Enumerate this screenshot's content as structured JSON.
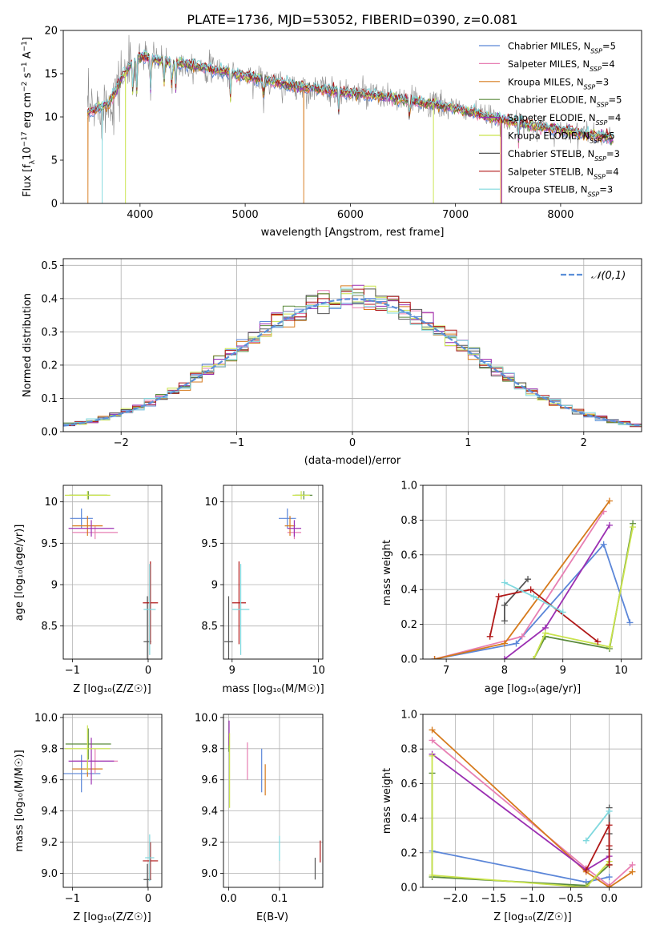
{
  "figure_title": "PLATE=1736, MJD=53052, FIBERID=0390, z=0.081",
  "colors": {
    "Chabrier MILES": "#5b86d8",
    "Salpeter MILES": "#e77fb3",
    "Kroupa MILES": "#d67a1c",
    "Chabrier ELODIE": "#5a8a3c",
    "Salpeter ELODIE": "#9b2fb2",
    "Kroupa ELODIE": "#c9e34c",
    "Chabrier STELIB": "#555555",
    "Salpeter STELIB": "#b01818",
    "Kroupa STELIB": "#7fd8de",
    "data": "#8a8a8a",
    "normal": "#5b8fd8"
  },
  "chart_data": [
    {
      "id": "spectrum",
      "type": "line",
      "xlabel": "wavelength [Angstrom, rest frame]",
      "ylabel_parts": [
        "Flux [f",
        "λ",
        "10",
        "−17",
        " erg cm",
        "−2",
        " s",
        "−1",
        " A",
        "−1",
        "]"
      ],
      "xlim": [
        3270,
        8770
      ],
      "ylim": [
        0,
        20
      ],
      "xticks": [
        4000,
        5000,
        6000,
        7000,
        8000
      ],
      "yticks": [
        0,
        5,
        10,
        15,
        20
      ],
      "grid": false,
      "legend_position": "top-right",
      "legend": [
        {
          "name": "Chabrier MILES",
          "n": "5"
        },
        {
          "name": "Salpeter MILES",
          "n": "4"
        },
        {
          "name": "Kroupa MILES",
          "n": "3"
        },
        {
          "name": "Chabrier ELODIE",
          "n": "5"
        },
        {
          "name": "Salpeter ELODIE",
          "n": "4"
        },
        {
          "name": "Kroupa ELODIE",
          "n": "5"
        },
        {
          "name": "Chabrier STELIB",
          "n": "3"
        },
        {
          "name": "Salpeter STELIB",
          "n": "4"
        },
        {
          "name": "Kroupa STELIB",
          "n": "3"
        }
      ],
      "continuum": [
        [
          3500,
          10.5
        ],
        [
          3700,
          11.5
        ],
        [
          3850,
          15.0
        ],
        [
          3950,
          16.5
        ],
        [
          4000,
          17.0
        ],
        [
          4200,
          16.5
        ],
        [
          4500,
          16.0
        ],
        [
          5000,
          14.7
        ],
        [
          5500,
          13.5
        ],
        [
          6000,
          12.8
        ],
        [
          6500,
          12.0
        ],
        [
          7000,
          11.0
        ],
        [
          7500,
          9.5
        ],
        [
          8000,
          8.5
        ],
        [
          8500,
          7.5
        ]
      ],
      "absorption_features": [
        [
          3934,
          5
        ],
        [
          3968,
          4
        ],
        [
          4102,
          4
        ],
        [
          4227,
          3
        ],
        [
          4304,
          4
        ],
        [
          4340,
          3
        ],
        [
          4861,
          3
        ],
        [
          5175,
          3
        ],
        [
          5890,
          2.5
        ],
        [
          6563,
          2.5
        ],
        [
          7600,
          2
        ]
      ]
    },
    {
      "id": "residuals",
      "type": "histogram",
      "xlabel": "(data-model)/error",
      "ylabel": "Normed distribution",
      "xlim": [
        -2.5,
        2.5
      ],
      "ylim": [
        0,
        0.52
      ],
      "xticks": [
        -2,
        -1,
        0,
        1,
        2
      ],
      "yticks": [
        0.0,
        0.1,
        0.2,
        0.3,
        0.4,
        0.5
      ],
      "grid": true,
      "bin_width": 0.1,
      "legend_position": "top-right",
      "legend_label": "𝒩(0,1)"
    },
    {
      "id": "age_vs_Z",
      "type": "scatter",
      "xlabel": "Z [log₁₀(Z/Z☉)]",
      "ylabel": "age  [log₁₀(age/yr)]",
      "xlim": [
        -1.12,
        0.18
      ],
      "ylim": [
        8.1,
        10.2
      ],
      "xticks": [
        -1,
        0
      ],
      "yticks": [
        8.5,
        9.0,
        9.5,
        10.0
      ],
      "grid": true,
      "points": [
        {
          "series": "Chabrier MILES",
          "x": -0.88,
          "y": 9.8,
          "xerr": 0.15,
          "yerr": 0.12
        },
        {
          "series": "Salpeter MILES",
          "x": -0.7,
          "y": 9.63,
          "xerr": 0.3,
          "yerr": 0.08
        },
        {
          "series": "Kroupa MILES",
          "x": -0.8,
          "y": 9.71,
          "xerr": 0.2,
          "yerr": 0.12
        },
        {
          "series": "Chabrier ELODIE",
          "x": -0.79,
          "y": 10.08,
          "xerr": 0.25,
          "yerr": 0.05
        },
        {
          "series": "Salpeter ELODIE",
          "x": -0.75,
          "y": 9.68,
          "xerr": 0.3,
          "yerr": 0.1
        },
        {
          "series": "Kroupa ELODIE",
          "x": -0.8,
          "y": 10.08,
          "xerr": 0.3,
          "yerr": 0.05
        },
        {
          "series": "Chabrier STELIB",
          "x": -0.01,
          "y": 8.31,
          "xerr": 0.05,
          "yerr": 0.55
        },
        {
          "series": "Salpeter STELIB",
          "x": 0.03,
          "y": 8.78,
          "xerr": 0.1,
          "yerr": 0.5
        },
        {
          "series": "Kroupa STELIB",
          "x": 0.02,
          "y": 8.7,
          "xerr": 0.08,
          "yerr": 0.55
        }
      ]
    },
    {
      "id": "age_vs_mass",
      "type": "scatter",
      "xlabel": "mass [log₁₀(M/M☉)]",
      "ylabel": "",
      "xlim": [
        8.9,
        10.05
      ],
      "ylim": [
        8.1,
        10.2
      ],
      "xticks": [
        9,
        10
      ],
      "yticks": [
        8.5,
        9.0,
        9.5,
        10.0
      ],
      "grid": true,
      "points": [
        {
          "series": "Chabrier MILES",
          "x": 9.64,
          "y": 9.8,
          "xerr": 0.1,
          "yerr": 0.12
        },
        {
          "series": "Salpeter MILES",
          "x": 9.72,
          "y": 9.63,
          "xerr": 0.08,
          "yerr": 0.08
        },
        {
          "series": "Kroupa MILES",
          "x": 9.67,
          "y": 9.71,
          "xerr": 0.06,
          "yerr": 0.12
        },
        {
          "series": "Chabrier ELODIE",
          "x": 9.83,
          "y": 10.08,
          "xerr": 0.1,
          "yerr": 0.05
        },
        {
          "series": "Salpeter ELODIE",
          "x": 9.72,
          "y": 9.68,
          "xerr": 0.08,
          "yerr": 0.1
        },
        {
          "series": "Kroupa ELODIE",
          "x": 9.8,
          "y": 10.08,
          "xerr": 0.1,
          "yerr": 0.05
        },
        {
          "series": "Chabrier STELIB",
          "x": 8.96,
          "y": 8.31,
          "xerr": 0.05,
          "yerr": 0.55
        },
        {
          "series": "Salpeter STELIB",
          "x": 9.08,
          "y": 8.78,
          "xerr": 0.08,
          "yerr": 0.5
        },
        {
          "series": "Kroupa STELIB",
          "x": 9.1,
          "y": 8.7,
          "xerr": 0.1,
          "yerr": 0.55
        }
      ]
    },
    {
      "id": "weight_vs_age",
      "type": "line",
      "xlabel": "age  [log₁₀(age/yr)]",
      "ylabel": "mass weight",
      "xlim": [
        6.6,
        10.35
      ],
      "ylim": [
        0,
        1.0
      ],
      "xticks": [
        7,
        8,
        9,
        10
      ],
      "yticks": [
        0.0,
        0.2,
        0.4,
        0.6,
        0.8,
        1.0
      ],
      "grid": true,
      "series": [
        {
          "name": "Chabrier MILES",
          "x": [
            6.8,
            8.2,
            9.7,
            10.15
          ],
          "y": [
            0.0,
            0.09,
            0.66,
            0.21
          ]
        },
        {
          "name": "Salpeter MILES",
          "x": [
            6.8,
            8.3,
            9.7
          ],
          "y": [
            0.0,
            0.13,
            0.85
          ]
        },
        {
          "name": "Kroupa MILES",
          "x": [
            6.8,
            8.0,
            9.8
          ],
          "y": [
            0.0,
            0.09,
            0.91
          ]
        },
        {
          "name": "Chabrier ELODIE",
          "x": [
            8.5,
            8.7,
            9.8,
            10.2
          ],
          "y": [
            0.0,
            0.13,
            0.06,
            0.78
          ]
        },
        {
          "name": "Salpeter ELODIE",
          "x": [
            8.0,
            8.7,
            9.8
          ],
          "y": [
            0.0,
            0.18,
            0.77
          ]
        },
        {
          "name": "Kroupa ELODIE",
          "x": [
            8.5,
            8.7,
            9.8,
            10.2
          ],
          "y": [
            0.0,
            0.15,
            0.07,
            0.76
          ]
        },
        {
          "name": "Chabrier STELIB",
          "x": [
            8.0,
            8.0,
            8.4
          ],
          "y": [
            0.22,
            0.31,
            0.46
          ]
        },
        {
          "name": "Salpeter STELIB",
          "x": [
            7.75,
            7.9,
            8.45,
            9.6
          ],
          "y": [
            0.13,
            0.36,
            0.4,
            0.1
          ]
        },
        {
          "name": "Kroupa STELIB",
          "x": [
            8.0,
            8.5,
            9.0
          ],
          "y": [
            0.44,
            0.36,
            0.27
          ]
        }
      ]
    },
    {
      "id": "mass_vs_Z",
      "type": "scatter",
      "xlabel": "Z [log₁₀(Z/Z☉)]",
      "ylabel": "mass [log₁₀(M/M☉)]",
      "xlim": [
        -1.12,
        0.18
      ],
      "ylim": [
        8.91,
        10.02
      ],
      "xticks": [
        -1,
        0
      ],
      "yticks": [
        9.0,
        9.2,
        9.4,
        9.6,
        9.8,
        10.0
      ],
      "grid": true,
      "points": [
        {
          "series": "Chabrier MILES",
          "x": -0.88,
          "y": 9.64,
          "xerr": 0.25,
          "yerr": 0.12
        },
        {
          "series": "Salpeter MILES",
          "x": -0.7,
          "y": 9.72,
          "xerr": 0.3,
          "yerr": 0.08
        },
        {
          "series": "Kroupa MILES",
          "x": -0.8,
          "y": 9.67,
          "xerr": 0.2,
          "yerr": 0.05
        },
        {
          "series": "Chabrier ELODIE",
          "x": -0.79,
          "y": 9.83,
          "xerr": 0.3,
          "yerr": 0.1
        },
        {
          "series": "Salpeter ELODIE",
          "x": -0.75,
          "y": 9.72,
          "xerr": 0.3,
          "yerr": 0.15
        },
        {
          "series": "Kroupa ELODIE",
          "x": -0.8,
          "y": 9.8,
          "xerr": 0.3,
          "yerr": 0.15
        },
        {
          "series": "Chabrier STELIB",
          "x": -0.01,
          "y": 8.96,
          "xerr": 0.05,
          "yerr": 0.1
        },
        {
          "series": "Salpeter STELIB",
          "x": 0.03,
          "y": 9.08,
          "xerr": 0.1,
          "yerr": 0.12
        },
        {
          "series": "Kroupa STELIB",
          "x": 0.02,
          "y": 9.1,
          "xerr": 0.06,
          "yerr": 0.15
        }
      ]
    },
    {
      "id": "mass_vs_ebv",
      "type": "scatter",
      "xlabel": "E(B-V)",
      "ylabel": "",
      "xlim": [
        -0.01,
        0.185
      ],
      "ylim": [
        8.91,
        10.02
      ],
      "xticks": [
        0.0,
        0.1
      ],
      "yticks": [
        9.0,
        9.2,
        9.4,
        9.6,
        9.8,
        10.0
      ],
      "grid": true,
      "points": [
        {
          "series": "Chabrier MILES",
          "x": 0.065,
          "y": 9.66,
          "yerr": 0.14
        },
        {
          "series": "Salpeter MILES",
          "x": 0.037,
          "y": 9.72,
          "yerr": 0.12
        },
        {
          "series": "Kroupa MILES",
          "x": 0.072,
          "y": 9.6,
          "yerr": 0.1
        },
        {
          "series": "Chabrier ELODIE",
          "x": 0.001,
          "y": 9.83,
          "yerr": 0.05
        },
        {
          "series": "Salpeter ELODIE",
          "x": 0.001,
          "y": 9.9,
          "yerr": 0.08
        },
        {
          "series": "Kroupa ELODIE",
          "x": 0.002,
          "y": 9.66,
          "yerr": 0.24
        },
        {
          "series": "Chabrier STELIB",
          "x": 0.17,
          "y": 9.03,
          "yerr": 0.07
        },
        {
          "series": "Salpeter STELIB",
          "x": 0.18,
          "y": 9.14,
          "yerr": 0.07
        },
        {
          "series": "Kroupa STELIB",
          "x": 0.1,
          "y": 9.16,
          "yerr": 0.08
        }
      ]
    },
    {
      "id": "weight_vs_Z",
      "type": "line",
      "xlabel": "Z [log₁₀(Z/Z☉)]",
      "ylabel": "mass weight",
      "xlim": [
        -2.42,
        0.42
      ],
      "ylim": [
        0,
        1.0
      ],
      "xticks": [
        -2.0,
        -1.5,
        -1.0,
        -0.5,
        0.0
      ],
      "yticks": [
        0.0,
        0.2,
        0.4,
        0.6,
        0.8,
        1.0
      ],
      "grid": true,
      "series": [
        {
          "name": "Chabrier MILES",
          "x": [
            -2.3,
            -0.3,
            0.0
          ],
          "y": [
            0.21,
            0.03,
            0.06
          ]
        },
        {
          "name": "Salpeter MILES",
          "x": [
            -2.3,
            -0.3,
            0.0,
            0.3
          ],
          "y": [
            0.85,
            0.11,
            0.01,
            0.13
          ]
        },
        {
          "name": "Kroupa MILES",
          "x": [
            -2.3,
            -0.3,
            0.0,
            0.3
          ],
          "y": [
            0.91,
            0.09,
            0.0,
            0.09
          ]
        },
        {
          "name": "Chabrier ELODIE",
          "x": [
            -2.3,
            -2.3,
            -0.3,
            0.0
          ],
          "y": [
            0.66,
            0.06,
            0.01,
            0.13
          ]
        },
        {
          "name": "Salpeter ELODIE",
          "x": [
            -2.3,
            -0.3,
            0.0
          ],
          "y": [
            0.77,
            0.1,
            0.18
          ]
        },
        {
          "name": "Kroupa ELODIE",
          "x": [
            -2.3,
            -2.3,
            -0.3,
            0.0
          ],
          "y": [
            0.76,
            0.07,
            0.0,
            0.15
          ]
        },
        {
          "name": "Chabrier STELIB",
          "x": [
            0.0,
            0.0,
            0.0
          ],
          "y": [
            0.22,
            0.31,
            0.46
          ]
        },
        {
          "name": "Salpeter STELIB",
          "x": [
            -0.3,
            0.0,
            0.0,
            0.0
          ],
          "y": [
            0.1,
            0.36,
            0.13,
            0.24
          ]
        },
        {
          "name": "Kroupa STELIB",
          "x": [
            -0.3,
            0.0
          ],
          "y": [
            0.27,
            0.44
          ]
        }
      ]
    }
  ]
}
